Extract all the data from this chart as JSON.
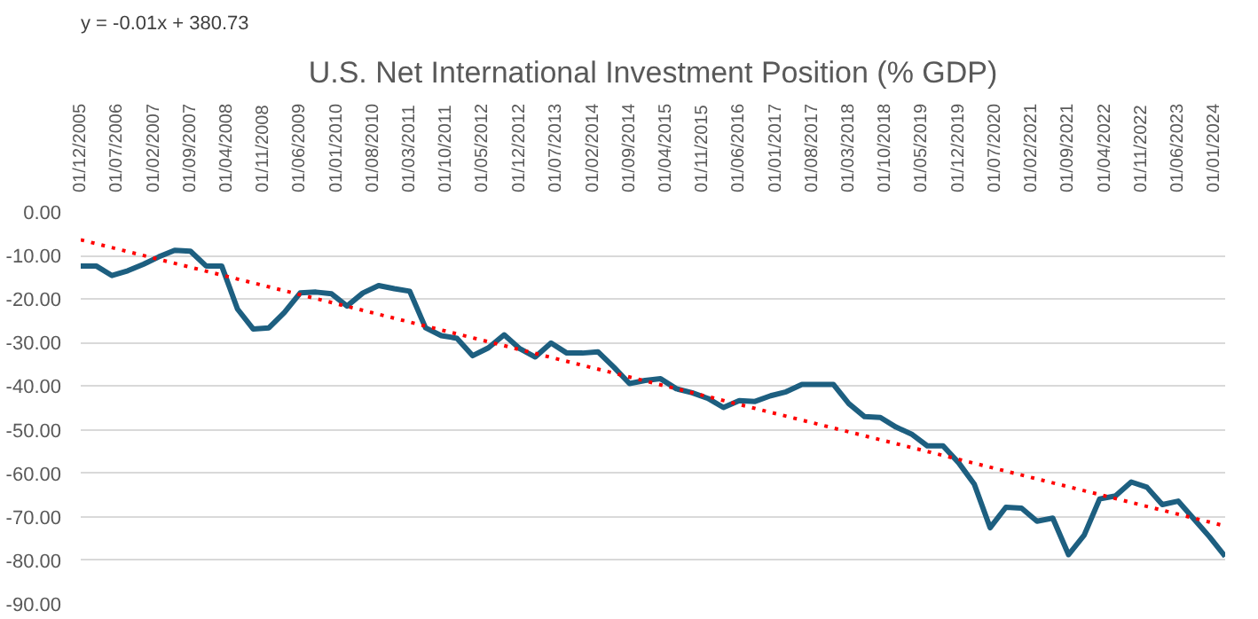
{
  "chart_data": {
    "type": "line",
    "title": "U.S. Net International Investment Position (% GDP)",
    "annotations": [
      "y = -0.01x + 380.73"
    ],
    "x": [
      "2005-12",
      "2006-03",
      "2006-06",
      "2006-09",
      "2006-12",
      "2007-03",
      "2007-06",
      "2007-09",
      "2007-12",
      "2008-03",
      "2008-06",
      "2008-09",
      "2008-12",
      "2009-03",
      "2009-06",
      "2009-09",
      "2009-12",
      "2010-03",
      "2010-06",
      "2010-09",
      "2010-12",
      "2011-03",
      "2011-06",
      "2011-09",
      "2011-12",
      "2012-03",
      "2012-06",
      "2012-09",
      "2012-12",
      "2013-03",
      "2013-06",
      "2013-09",
      "2013-12",
      "2014-03",
      "2014-06",
      "2014-09",
      "2014-12",
      "2015-03",
      "2015-06",
      "2015-09",
      "2015-12",
      "2016-03",
      "2016-06",
      "2016-09",
      "2016-12",
      "2017-03",
      "2017-06",
      "2017-09",
      "2017-12",
      "2018-03",
      "2018-06",
      "2018-09",
      "2018-12",
      "2019-03",
      "2019-06",
      "2019-09",
      "2019-12",
      "2020-03",
      "2020-06",
      "2020-09",
      "2020-12",
      "2021-03",
      "2021-06",
      "2021-09",
      "2021-12",
      "2022-03",
      "2022-06",
      "2022-09",
      "2022-12",
      "2023-03",
      "2023-06",
      "2023-09",
      "2023-12",
      "2024-03"
    ],
    "series": [
      {
        "color": "#1d5f80",
        "line_style": "solid",
        "values": [
          -12.4,
          -12.4,
          -14.6,
          -13.5,
          -12.0,
          -10.3,
          -8.8,
          -9.0,
          -12.4,
          -12.4,
          -22.3,
          -26.9,
          -26.6,
          -23.1,
          -18.6,
          -18.4,
          -18.8,
          -21.6,
          -18.6,
          -16.9,
          -17.6,
          -18.2,
          -26.6,
          -28.4,
          -29.0,
          -33.0,
          -31.2,
          -28.2,
          -31.4,
          -33.3,
          -30.1,
          -32.4,
          -32.4,
          -32.1,
          -35.6,
          -39.4,
          -38.7,
          -38.3,
          -40.6,
          -41.5,
          -42.8,
          -44.9,
          -43.3,
          -43.5,
          -42.2,
          -41.3,
          -39.6,
          -39.6,
          -39.6,
          -44.0,
          -47.0,
          -47.2,
          -49.4,
          -51.0,
          -53.7,
          -53.7,
          -57.6,
          -62.5,
          -72.5,
          -67.8,
          -68.0,
          -71.0,
          -70.3,
          -78.7,
          -74.2,
          -65.9,
          -65.2,
          -62.0,
          -63.2,
          -67.2,
          -66.4,
          -70.5,
          -74.6,
          -79.1
        ]
      },
      {
        "type": "line",
        "color": "#ff0000",
        "line_style": "dotted",
        "x": [
          "2005-12",
          "2024-03"
        ],
        "values": [
          -6.4,
          -72.1
        ]
      }
    ],
    "xlim": [
      "2005-12",
      "2024-03"
    ],
    "xticks": [
      {
        "value": "2005-12",
        "label": "01/12/2005"
      },
      {
        "value": "2006-07",
        "label": "01/07/2006"
      },
      {
        "value": "2007-02",
        "label": "01/02/2007"
      },
      {
        "value": "2007-09",
        "label": "01/09/2007"
      },
      {
        "value": "2008-04",
        "label": "01/04/2008"
      },
      {
        "value": "2008-11",
        "label": "01/11/2008"
      },
      {
        "value": "2009-06",
        "label": "01/06/2009"
      },
      {
        "value": "2010-01",
        "label": "01/01/2010"
      },
      {
        "value": "2010-08",
        "label": "01/08/2010"
      },
      {
        "value": "2011-03",
        "label": "01/03/2011"
      },
      {
        "value": "2011-10",
        "label": "01/10/2011"
      },
      {
        "value": "2012-05",
        "label": "01/05/2012"
      },
      {
        "value": "2012-12",
        "label": "01/12/2012"
      },
      {
        "value": "2013-07",
        "label": "01/07/2013"
      },
      {
        "value": "2014-02",
        "label": "01/02/2014"
      },
      {
        "value": "2014-09",
        "label": "01/09/2014"
      },
      {
        "value": "2015-04",
        "label": "01/04/2015"
      },
      {
        "value": "2015-11",
        "label": "01/11/2015"
      },
      {
        "value": "2016-06",
        "label": "01/06/2016"
      },
      {
        "value": "2017-01",
        "label": "01/01/2017"
      },
      {
        "value": "2017-08",
        "label": "01/08/2017"
      },
      {
        "value": "2018-03",
        "label": "01/03/2018"
      },
      {
        "value": "2018-10",
        "label": "01/10/2018"
      },
      {
        "value": "2019-05",
        "label": "01/05/2019"
      },
      {
        "value": "2019-12",
        "label": "01/12/2019"
      },
      {
        "value": "2020-07",
        "label": "01/07/2020"
      },
      {
        "value": "2021-02",
        "label": "01/02/2021"
      },
      {
        "value": "2021-09",
        "label": "01/09/2021"
      },
      {
        "value": "2022-04",
        "label": "01/04/2022"
      },
      {
        "value": "2022-11",
        "label": "01/11/2022"
      },
      {
        "value": "2023-06",
        "label": "01/06/2023"
      },
      {
        "value": "2024-01",
        "label": "01/01/2024"
      }
    ],
    "ylim": [
      -90,
      0
    ],
    "yticks": [
      {
        "value": 0,
        "label": "0.00"
      },
      {
        "value": -10,
        "label": "-10.00"
      },
      {
        "value": -20,
        "label": "-20.00"
      },
      {
        "value": -30,
        "label": "-30.00"
      },
      {
        "value": -40,
        "label": "-40.00"
      },
      {
        "value": -50,
        "label": "-50.00"
      },
      {
        "value": -60,
        "label": "-60.00"
      },
      {
        "value": -70,
        "label": "-70.00"
      },
      {
        "value": -80,
        "label": "-80.00"
      },
      {
        "value": -90,
        "label": "-90.00"
      }
    ],
    "grid": "y",
    "marker": "none"
  }
}
